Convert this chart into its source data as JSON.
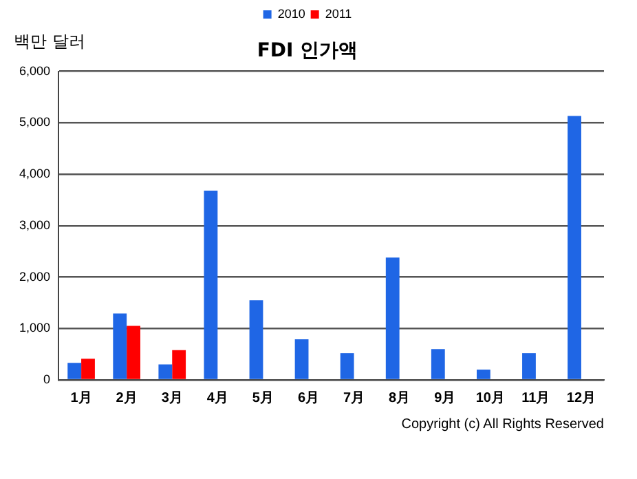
{
  "chart_data": {
    "type": "bar",
    "title": "FDI 인가액",
    "ylabel": "백만 달러",
    "categories": [
      "1月",
      "2月",
      "3月",
      "4月",
      "5月",
      "6月",
      "7月",
      "8月",
      "9月",
      "10月",
      "11月",
      "12月"
    ],
    "series": [
      {
        "name": "2010",
        "color": "#1f66e5",
        "values": [
          330,
          1290,
          300,
          3680,
          1550,
          790,
          520,
          2380,
          600,
          200,
          520,
          5130
        ]
      },
      {
        "name": "2011",
        "color": "#ff0000",
        "values": [
          410,
          1050,
          580,
          null,
          null,
          null,
          null,
          null,
          null,
          null,
          null,
          null
        ]
      }
    ],
    "ylim": [
      0,
      6000
    ],
    "yticks": [
      0,
      {
        "value": 1000,
        "label": "1,000"
      },
      {
        "value": 2000,
        "label": "2,000"
      },
      {
        "value": 3000,
        "label": "3,000"
      },
      {
        "value": 4000,
        "label": "4,000"
      },
      {
        "value": 5000,
        "label": "5,000"
      },
      {
        "value": 6000,
        "label": "6,000"
      }
    ],
    "grid": "y",
    "legend": "top",
    "annotations": [
      "Copyright (c) All Rights Reserved"
    ]
  }
}
